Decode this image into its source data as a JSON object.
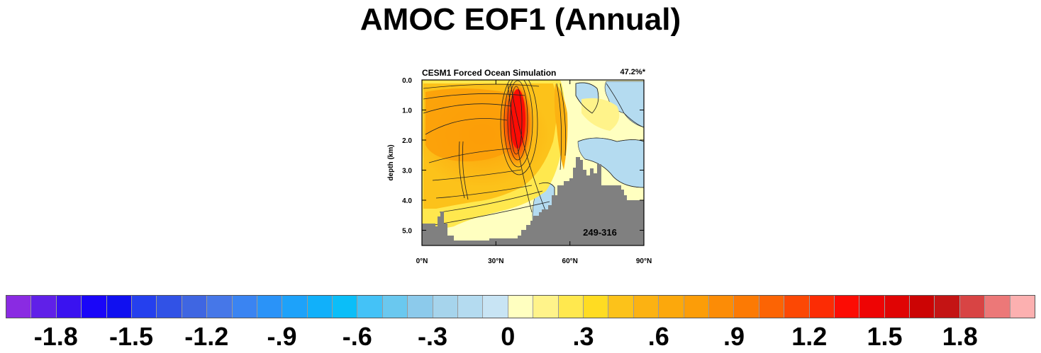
{
  "title": "AMOC EOF1 (Annual)",
  "panel": {
    "title": "CESM1 Forced Ocean Simulation",
    "variance": "47.2%*",
    "years": "249-316"
  },
  "chart_data": {
    "type": "heatmap",
    "title": "CESM1 Forced Ocean Simulation",
    "ylabel": "depth (km)",
    "xlabel": "",
    "xlim": [
      0,
      90
    ],
    "ylim": [
      5.5,
      0.0
    ],
    "x_ticks": [
      "0°N",
      "30°N",
      "60°N",
      "90°N"
    ],
    "y_ticks": [
      "0.0",
      "1.0",
      "2.0",
      "3.0",
      "4.0",
      "5.0"
    ],
    "annotations": [
      "47.2%*",
      "249-316"
    ],
    "field_features": [
      {
        "name": "broad positive cell",
        "lat": 18,
        "depth": 1.7,
        "value": 0.8
      },
      {
        "name": "peak maximum",
        "lat": 38,
        "depth": 1.4,
        "value": 1.6
      },
      {
        "name": "high-latitude positive band",
        "lat": 57,
        "depth": 0.7,
        "value": 0.5
      },
      {
        "name": "high-latitude weak negative",
        "lat": 80,
        "depth": 2.5,
        "value": -0.15
      }
    ],
    "land_mask_depth_by_lat": [
      [
        0,
        4.8
      ],
      [
        6,
        4.8
      ],
      [
        7,
        4.7
      ],
      [
        8,
        4.5
      ],
      [
        10,
        4.8
      ],
      [
        12,
        5.0
      ],
      [
        15,
        5.3
      ],
      [
        30,
        5.3
      ],
      [
        40,
        5.25
      ],
      [
        41,
        5.0
      ],
      [
        43,
        4.8
      ],
      [
        45,
        4.5
      ],
      [
        48,
        4.2
      ],
      [
        52,
        4.0
      ],
      [
        54,
        3.4
      ],
      [
        58,
        3.3
      ],
      [
        61,
        2.9
      ],
      [
        62,
        2.6
      ],
      [
        64,
        3.2
      ],
      [
        66,
        3.2
      ],
      [
        68,
        3.2
      ],
      [
        70,
        3.5
      ],
      [
        74,
        3.5
      ],
      [
        77,
        3.5
      ],
      [
        79,
        3.7
      ],
      [
        82,
        4.0
      ],
      [
        90,
        4.0
      ]
    ],
    "colorbar": {
      "levels": [
        -1.8,
        -1.5,
        -1.2,
        -0.9,
        -0.6,
        -0.3,
        0,
        0.3,
        0.6,
        0.9,
        1.2,
        1.5,
        1.8
      ],
      "tick_labels": [
        "-1.8",
        "-1.5",
        "-1.2",
        "-.9",
        "-.6",
        "-.3",
        "0",
        ".3",
        ".6",
        ".9",
        "1.2",
        "1.5",
        "1.8"
      ],
      "interval": 0.1,
      "colors": [
        "#8a2be2",
        "#6020e8",
        "#3a12f0",
        "#1a06f8",
        "#1010f0",
        "#2540ee",
        "#3152e6",
        "#3f66e2",
        "#4677e8",
        "#3a84f2",
        "#2a93f8",
        "#1da2fa",
        "#11b0fa",
        "#0bbef8",
        "#44c2f7",
        "#6ac8ef",
        "#8ccaeb",
        "#a6d4ec",
        "#b4dbf0",
        "#c8e4f4",
        "#ffffc0",
        "#fff38a",
        "#ffe84e",
        "#ffdc22",
        "#fcc21a",
        "#fcb212",
        "#fca80c",
        "#fc9d08",
        "#fc8c06",
        "#fc7a04",
        "#fc6404",
        "#fc4804",
        "#fc2c04",
        "#fc0c04",
        "#ee0404",
        "#e00404",
        "#cc0404",
        "#c41414",
        "#d84444",
        "#ec7878",
        "#fcb0b0"
      ]
    },
    "land_color": "#808080"
  }
}
